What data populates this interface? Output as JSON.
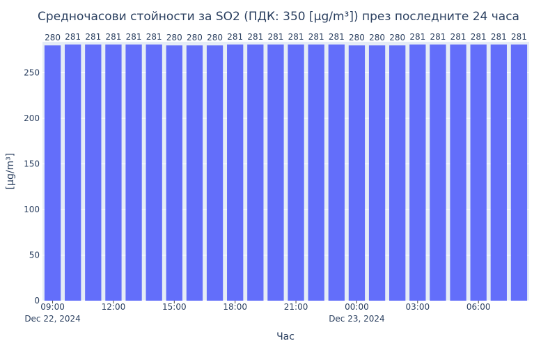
{
  "chart_data": {
    "type": "bar",
    "title": "Средночасови стойности за SO2 (ПДК: 350 [µg/m³]) през последните 24 часа",
    "xlabel": "Час",
    "ylabel": "[µg/m³]",
    "x": [
      "2024-12-22 09:00",
      "2024-12-22 10:00",
      "2024-12-22 11:00",
      "2024-12-22 12:00",
      "2024-12-22 13:00",
      "2024-12-22 14:00",
      "2024-12-22 15:00",
      "2024-12-22 16:00",
      "2024-12-22 17:00",
      "2024-12-22 18:00",
      "2024-12-22 19:00",
      "2024-12-22 20:00",
      "2024-12-22 21:00",
      "2024-12-22 22:00",
      "2024-12-22 23:00",
      "2024-12-23 00:00",
      "2024-12-23 01:00",
      "2024-12-23 02:00",
      "2024-12-23 03:00",
      "2024-12-23 04:00",
      "2024-12-23 05:00",
      "2024-12-23 06:00",
      "2024-12-23 07:00",
      "2024-12-23 08:00"
    ],
    "values": [
      280,
      281,
      281,
      281,
      281,
      281,
      280,
      280,
      280,
      281,
      281,
      281,
      281,
      281,
      281,
      280,
      280,
      280,
      281,
      281,
      281,
      281,
      281,
      281
    ],
    "ylim": [
      0,
      284
    ],
    "y_ticks": [
      "0",
      "50",
      "100",
      "150",
      "200",
      "250"
    ],
    "x_ticks": [
      {
        "label": "09:00",
        "sublabel": "Dec 22, 2024",
        "index": 0
      },
      {
        "label": "12:00",
        "sublabel": "",
        "index": 3
      },
      {
        "label": "15:00",
        "sublabel": "",
        "index": 6
      },
      {
        "label": "18:00",
        "sublabel": "",
        "index": 9
      },
      {
        "label": "21:00",
        "sublabel": "",
        "index": 12
      },
      {
        "label": "00:00",
        "sublabel": "Dec 23, 2024",
        "index": 15
      },
      {
        "label": "03:00",
        "sublabel": "",
        "index": 18
      },
      {
        "label": "06:00",
        "sublabel": "",
        "index": 21
      }
    ],
    "grid": true,
    "legend": "none",
    "colors": {
      "bar": "#636efa",
      "plot_bg": "#e5ecf6",
      "grid": "#ffffff",
      "text": "#2a3f5f"
    }
  }
}
